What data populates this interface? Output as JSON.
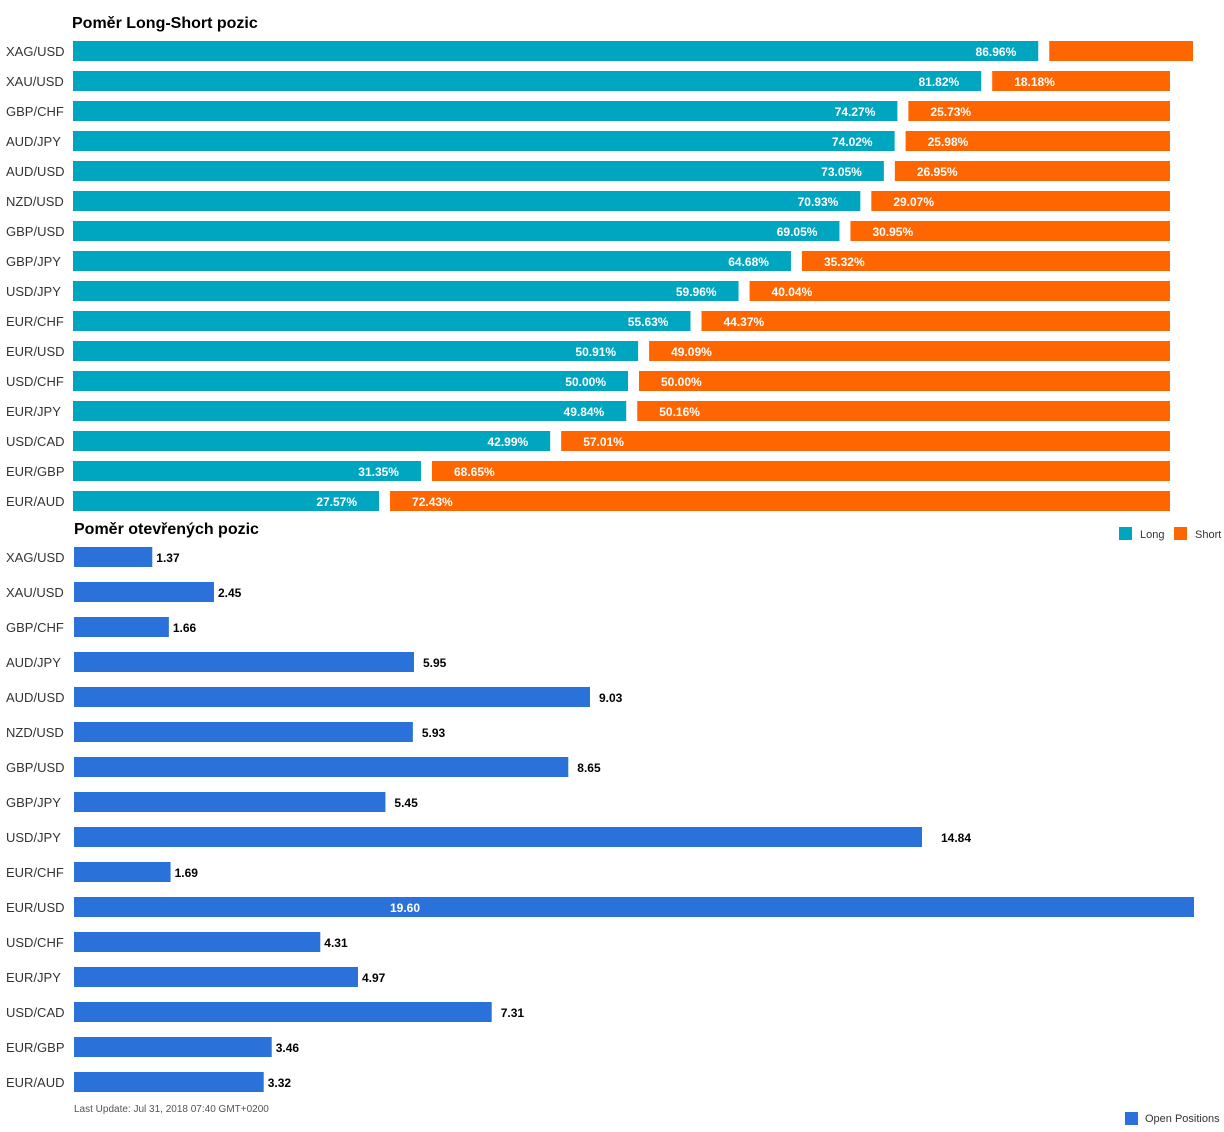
{
  "footer": {
    "last_update": "Last Update: Jul 31, 2018 07:40 GMT+0200"
  },
  "chart_data": [
    {
      "type": "bar",
      "orientation": "horizontal",
      "stacked": "percent",
      "title": "Poměr Long-Short pozic",
      "categories": [
        "XAG/USD",
        "XAU/USD",
        "GBP/CHF",
        "AUD/JPY",
        "AUD/USD",
        "NZD/USD",
        "GBP/USD",
        "GBP/JPY",
        "USD/JPY",
        "EUR/CHF",
        "EUR/USD",
        "USD/CHF",
        "EUR/JPY",
        "USD/CAD",
        "EUR/GBP",
        "EUR/AUD"
      ],
      "series": [
        {
          "name": "Long",
          "color": "#00a6bf",
          "values": [
            86.96,
            81.82,
            74.27,
            74.02,
            73.05,
            70.93,
            69.05,
            64.68,
            59.96,
            55.63,
            50.91,
            50.0,
            49.84,
            42.99,
            31.35,
            27.57
          ],
          "labels": [
            "86.96%",
            "81.82%",
            "74.27%",
            "74.02%",
            "73.05%",
            "70.93%",
            "69.05%",
            "64.68%",
            "59.96%",
            "55.63%",
            "50.91%",
            "50.00%",
            "49.84%",
            "42.99%",
            "31.35%",
            "27.57%"
          ]
        },
        {
          "name": "Short",
          "color": "#ff6600",
          "values": [
            13.04,
            18.18,
            25.73,
            25.98,
            26.95,
            29.07,
            30.95,
            35.32,
            40.04,
            44.37,
            49.09,
            50.0,
            50.16,
            57.01,
            68.65,
            72.43
          ],
          "labels": [
            "",
            "18.18%",
            "25.73%",
            "25.98%",
            "26.95%",
            "29.07%",
            "30.95%",
            "35.32%",
            "40.04%",
            "44.37%",
            "49.09%",
            "50.00%",
            "50.16%",
            "57.01%",
            "68.65%",
            "72.43%"
          ]
        }
      ],
      "xlim": [
        0,
        100
      ],
      "grid": false,
      "legend": "bottom-right"
    },
    {
      "type": "bar",
      "orientation": "horizontal",
      "title": "Poměr otevřených pozic",
      "categories": [
        "XAG/USD",
        "XAU/USD",
        "GBP/CHF",
        "AUD/JPY",
        "AUD/USD",
        "NZD/USD",
        "GBP/USD",
        "GBP/JPY",
        "USD/JPY",
        "EUR/CHF",
        "EUR/USD",
        "USD/CHF",
        "EUR/JPY",
        "USD/CAD",
        "EUR/GBP",
        "EUR/AUD"
      ],
      "series": [
        {
          "name": "Open Positions",
          "color": "#2a72d9",
          "values": [
            1.37,
            2.45,
            1.66,
            5.95,
            9.03,
            5.93,
            8.65,
            5.45,
            14.84,
            1.69,
            19.6,
            4.31,
            4.97,
            7.31,
            3.46,
            3.32
          ],
          "labels": [
            "1.37",
            "2.45",
            "1.66",
            "5.95",
            "9.03",
            "5.93",
            "8.65",
            "5.45",
            "14.84",
            "1.69",
            "19.60",
            "4.31",
            "4.97",
            "7.31",
            "3.46",
            "3.32"
          ]
        }
      ],
      "xlim": [
        0,
        19.6
      ],
      "grid": false,
      "legend": "bottom-right"
    }
  ]
}
